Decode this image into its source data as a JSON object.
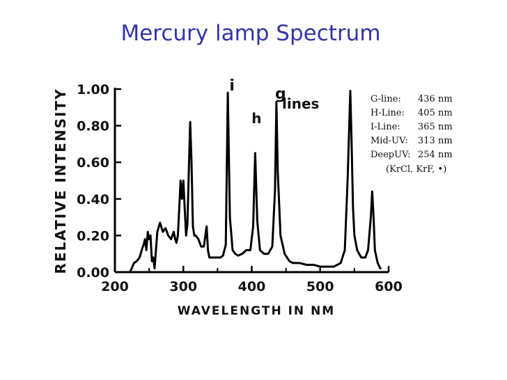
{
  "slide": {
    "title": "Mercury lamp Spectrum"
  },
  "legend": {
    "rows": [
      {
        "name": "G-line:",
        "value": "436  nm"
      },
      {
        "name": "H-Line:",
        "value": "405  nm"
      },
      {
        "name": "I-Line:",
        "value": "365  nm"
      },
      {
        "name": "Mid-UV:",
        "value": "313  nm"
      },
      {
        "name": "DeepUV:",
        "value": "254  nm"
      }
    ],
    "note": "(KrCl, KrF, •)"
  },
  "chart_data": {
    "type": "line",
    "title": "",
    "xlabel": "WAVELENGTH IN NM",
    "ylabel": "RELATIVE INTENSITY",
    "xlim": [
      200,
      600
    ],
    "ylim": [
      0,
      1.0
    ],
    "x_ticks": [
      "200",
      "300",
      "400",
      "500",
      "600"
    ],
    "y_ticks": [
      "0.00",
      "0.20",
      "0.40",
      "0.60",
      "0.80",
      "1.00"
    ],
    "grid": false,
    "annotations": [
      {
        "text": "i",
        "x": 365
      },
      {
        "text": "h",
        "x": 405
      },
      {
        "text": "g",
        "x": 436
      },
      {
        "text": "lines",
        "x": 500
      }
    ],
    "series": [
      {
        "x": [
          222,
          228,
          232,
          236,
          240,
          242,
          244,
          246,
          248,
          250,
          252,
          254,
          256,
          258,
          260,
          262,
          266,
          270,
          274,
          278,
          282,
          284,
          286,
          288,
          290,
          292,
          294,
          296,
          298,
          300,
          302,
          304,
          306,
          308,
          310,
          312,
          314,
          316,
          318,
          322,
          326,
          330,
          334,
          336,
          338,
          342,
          346,
          350,
          354,
          358,
          362,
          365,
          368,
          372,
          376,
          380,
          386,
          392,
          398,
          402,
          405,
          408,
          412,
          418,
          424,
          430,
          434,
          436,
          438,
          442,
          448,
          455,
          460,
          470,
          480,
          490,
          500,
          510,
          520,
          530,
          536,
          540,
          544,
          546,
          548,
          550,
          554,
          560,
          566,
          570,
          574,
          576,
          578,
          580,
          584,
          588
        ],
        "y": [
          0.0,
          0.05,
          0.06,
          0.08,
          0.13,
          0.15,
          0.18,
          0.12,
          0.22,
          0.18,
          0.2,
          0.06,
          0.08,
          0.02,
          0.12,
          0.22,
          0.27,
          0.22,
          0.24,
          0.2,
          0.18,
          0.2,
          0.22,
          0.18,
          0.16,
          0.2,
          0.35,
          0.5,
          0.4,
          0.5,
          0.35,
          0.2,
          0.26,
          0.55,
          0.82,
          0.6,
          0.25,
          0.2,
          0.2,
          0.18,
          0.14,
          0.14,
          0.25,
          0.12,
          0.08,
          0.08,
          0.08,
          0.08,
          0.08,
          0.09,
          0.15,
          0.98,
          0.3,
          0.12,
          0.1,
          0.09,
          0.1,
          0.12,
          0.12,
          0.25,
          0.65,
          0.28,
          0.12,
          0.1,
          0.1,
          0.14,
          0.45,
          0.93,
          0.55,
          0.2,
          0.1,
          0.06,
          0.05,
          0.05,
          0.04,
          0.04,
          0.03,
          0.03,
          0.03,
          0.05,
          0.12,
          0.5,
          0.99,
          0.7,
          0.35,
          0.2,
          0.12,
          0.08,
          0.08,
          0.12,
          0.3,
          0.44,
          0.3,
          0.12,
          0.05,
          0.02
        ]
      }
    ]
  }
}
